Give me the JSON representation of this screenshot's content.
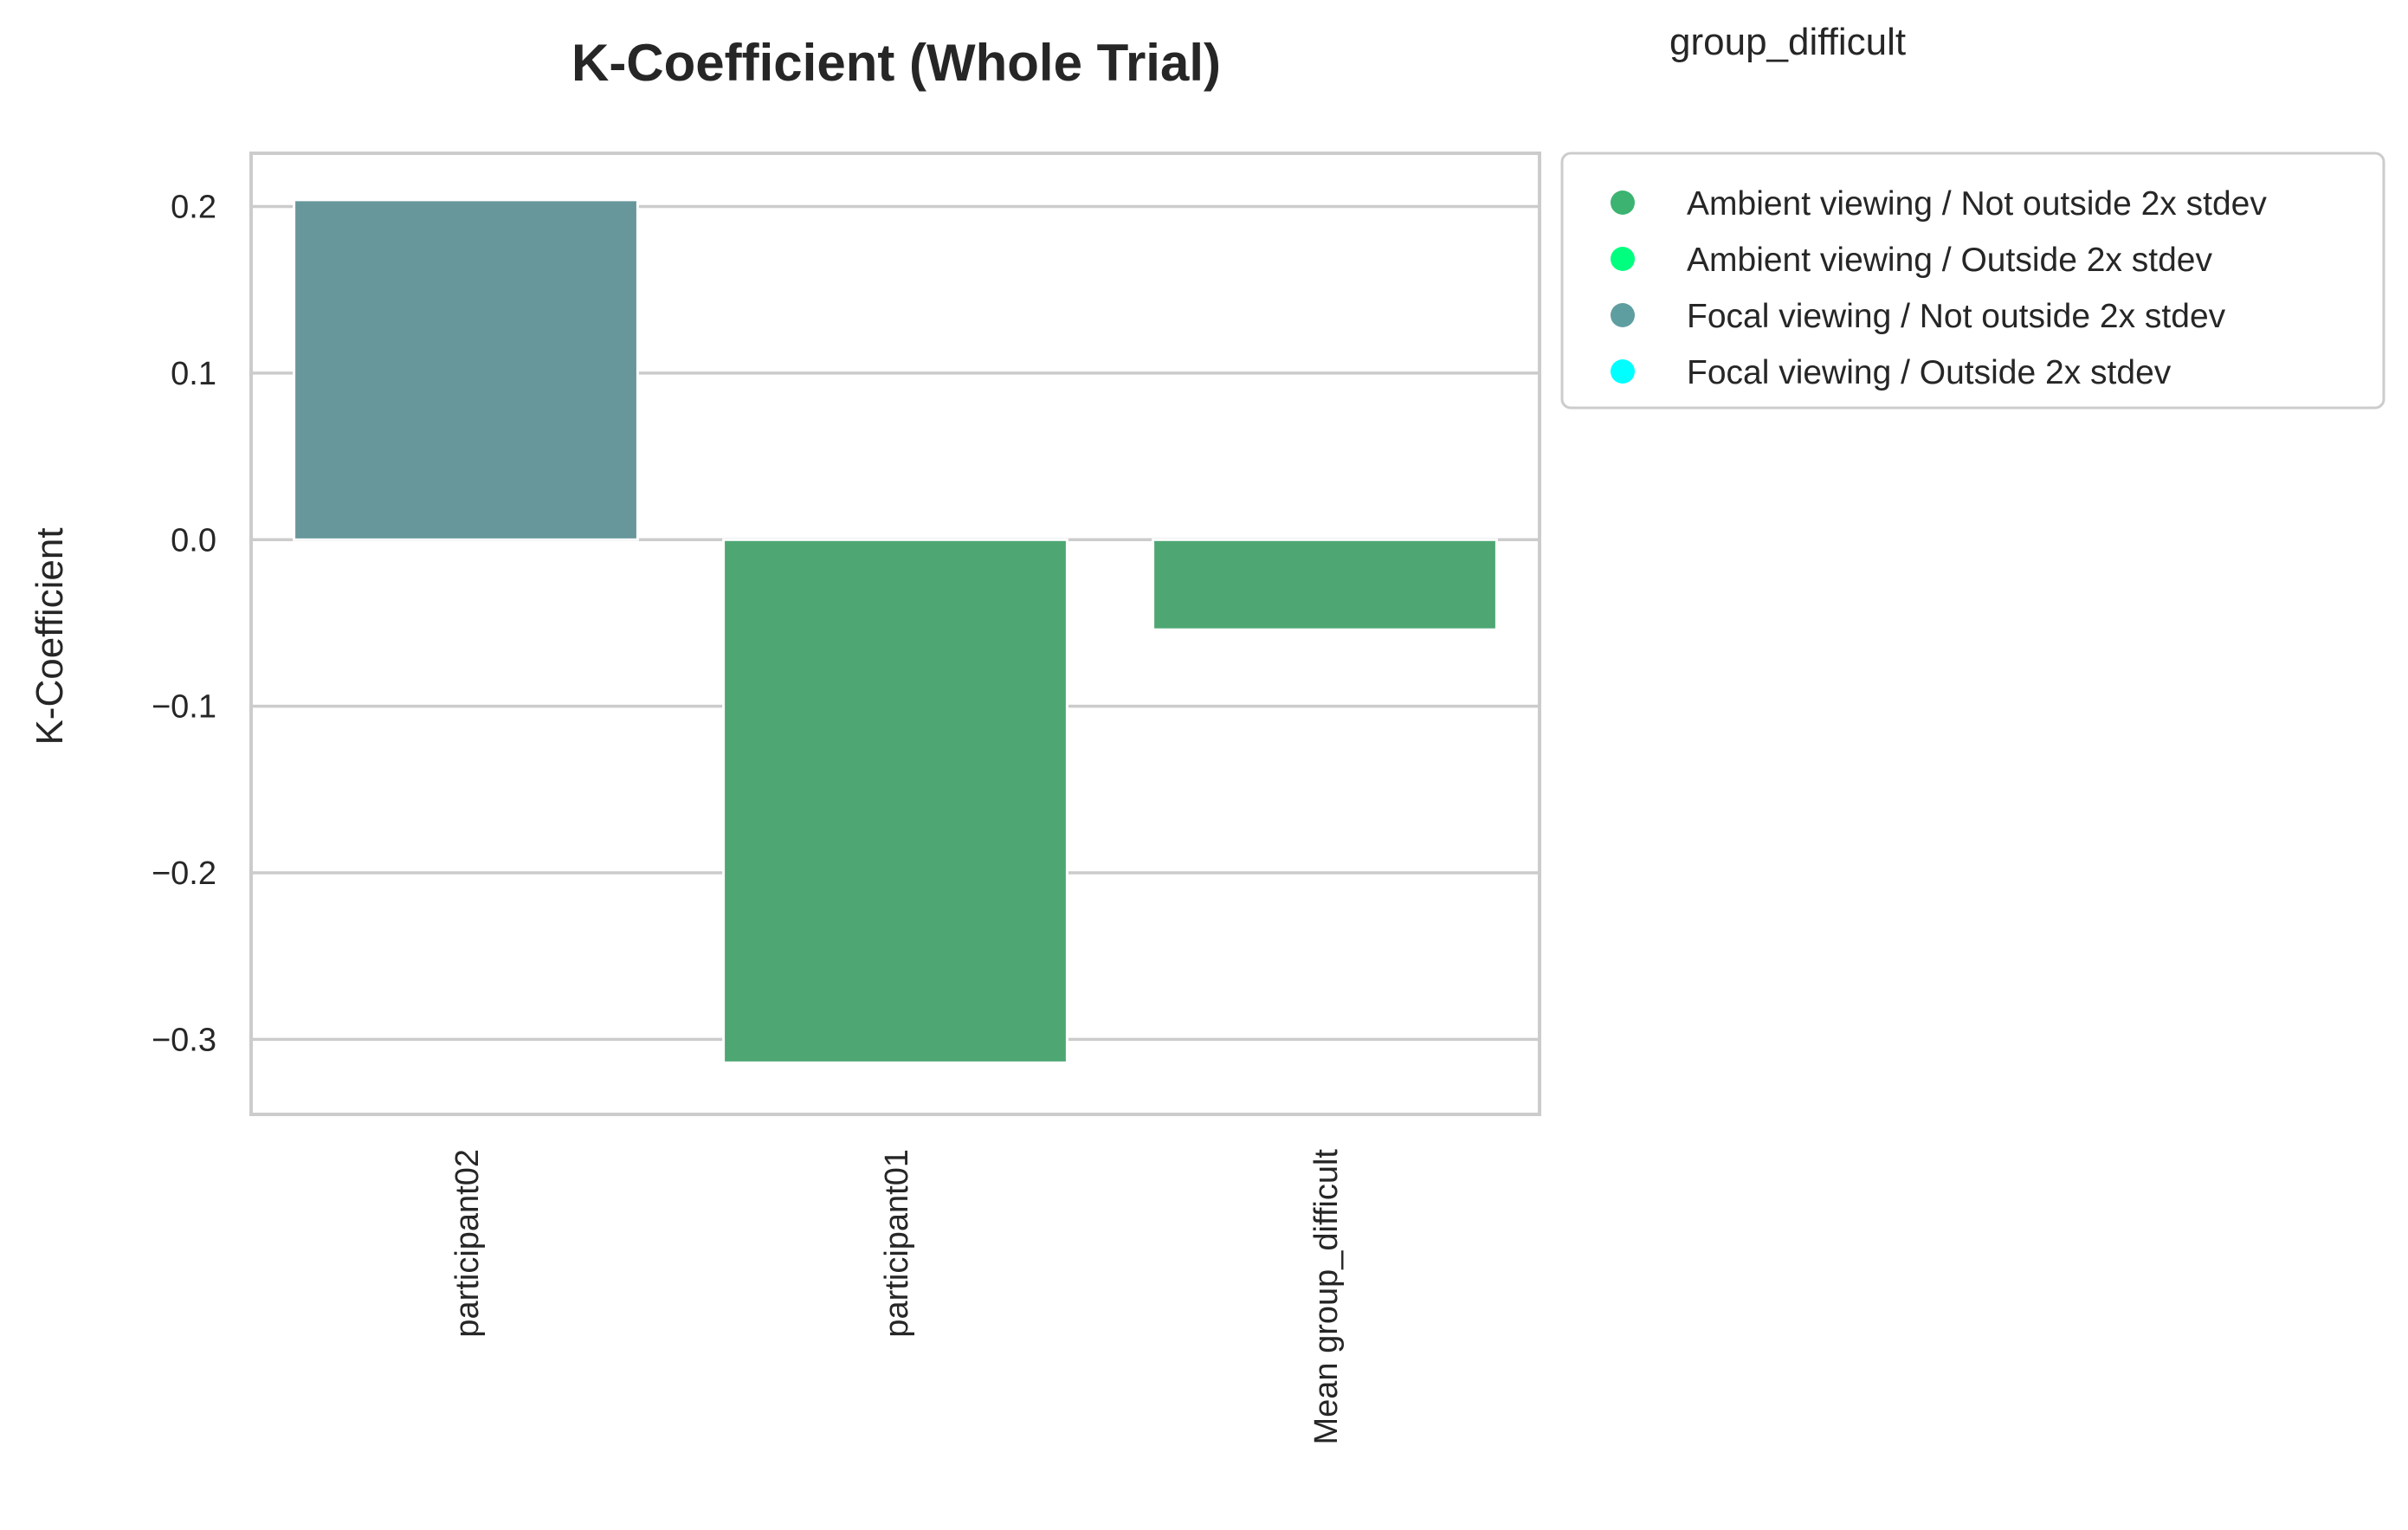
{
  "chart_data": {
    "type": "bar",
    "title": "K-Coefficient (Whole Trial)",
    "group_label": "group_difficult",
    "xlabel": "",
    "ylabel": "K-Coefficient",
    "ylim": [
      -0.345,
      0.232
    ],
    "yticks": [
      0.2,
      0.1,
      0.0,
      -0.1,
      -0.2,
      -0.3
    ],
    "ytick_labels": [
      "0.2",
      "0.1",
      "0.0",
      "−0.1",
      "−0.2",
      "−0.3"
    ],
    "grid": true,
    "legend_position": "outside-top-right",
    "categories": [
      "participant02",
      "participant01",
      "Mean group_difficult"
    ],
    "values": [
      0.204,
      -0.314,
      -0.054
    ],
    "bar_categories": [
      "Focal viewing / Not outside 2x stdev",
      "Ambient viewing / Not outside 2x stdev",
      "Ambient viewing / Not outside 2x stdev"
    ],
    "legend": [
      {
        "label": "Ambient viewing / Not outside 2x stdev",
        "color": "#3cb371"
      },
      {
        "label": "Ambient viewing / Outside 2x stdev",
        "color": "#00ff7f"
      },
      {
        "label": "Focal viewing / Not outside 2x stdev",
        "color": "#5f9ea0"
      },
      {
        "label": "Focal viewing / Outside 2x stdev",
        "color": "#00ffff"
      }
    ],
    "bar_colors": [
      "#67979a",
      "#4ea773",
      "#4ea773"
    ]
  }
}
